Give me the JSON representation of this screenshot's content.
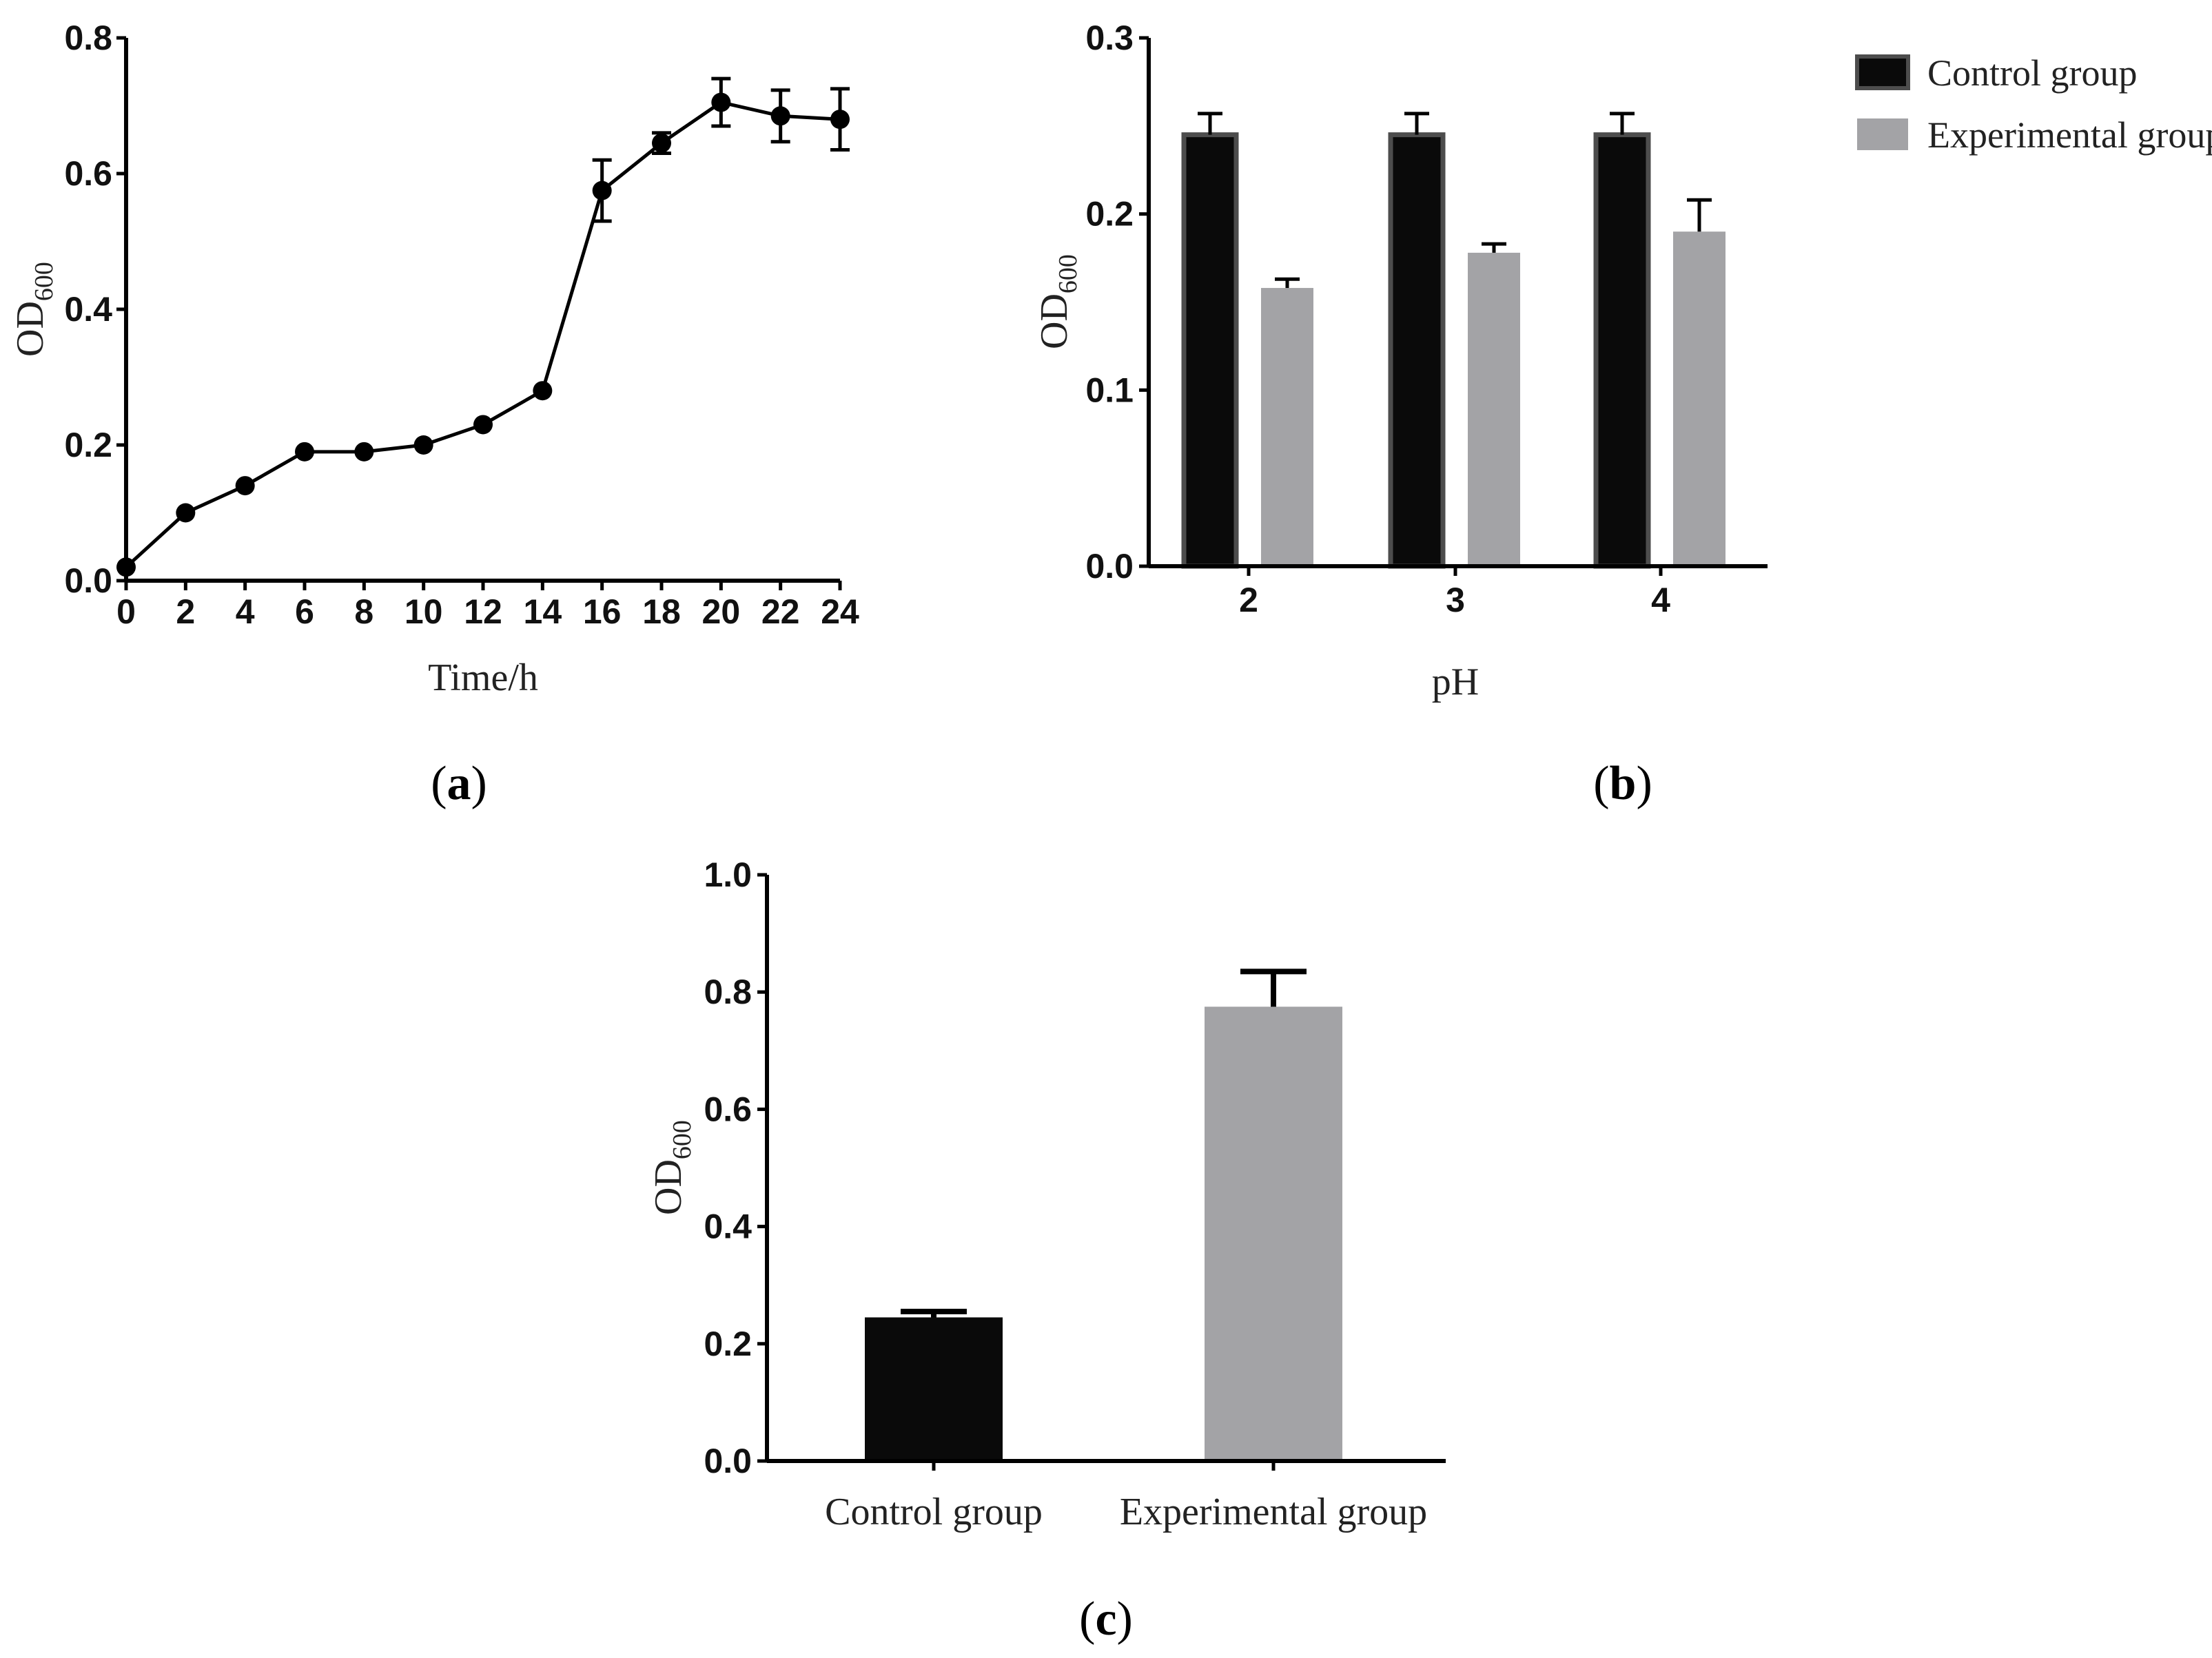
{
  "chart_data": [
    {
      "type": "line",
      "panel": "(a)",
      "caption": {
        "open": "(",
        "letter": "a",
        "close": ")"
      },
      "xlabel": "Time/h",
      "ylabel": {
        "main": "OD",
        "sub": "600"
      },
      "xlim": [
        0,
        24
      ],
      "ylim": [
        0,
        0.8
      ],
      "x_ticks": [
        "0",
        "2",
        "4",
        "6",
        "8",
        "10",
        "12",
        "14",
        "16",
        "18",
        "20",
        "22",
        "24"
      ],
      "y_ticks": [
        "0.0",
        "0.2",
        "0.4",
        "0.6",
        "0.8"
      ],
      "series": [
        {
          "name": "OD600",
          "x": [
            0,
            2,
            4,
            6,
            8,
            10,
            12,
            14,
            16,
            18,
            20,
            22,
            24
          ],
          "values": [
            0.02,
            0.1,
            0.14,
            0.19,
            0.19,
            0.2,
            0.23,
            0.28,
            0.575,
            0.645,
            0.705,
            0.685,
            0.68
          ],
          "errors": [
            0.005,
            0.005,
            0.005,
            0.005,
            0.005,
            0.005,
            0.005,
            0.005,
            0.045,
            0.015,
            0.035,
            0.038,
            0.045
          ]
        }
      ]
    },
    {
      "type": "bar",
      "panel": "(b)",
      "caption": {
        "open": "(",
        "letter": "b",
        "close": ")"
      },
      "xlabel": "pH",
      "ylabel": {
        "main": "OD",
        "sub": "600"
      },
      "ylim": [
        0,
        0.3
      ],
      "y_ticks": [
        "0.0",
        "0.1",
        "0.2",
        "0.3"
      ],
      "categories": [
        "2",
        "3",
        "4"
      ],
      "legend_position": "top-right",
      "series": [
        {
          "name": "Control group",
          "color": "#0a0a0a",
          "values": [
            0.245,
            0.245,
            0.245
          ],
          "errors": [
            0.012,
            0.012,
            0.012
          ]
        },
        {
          "name": "Experimental group",
          "color": "#a3a3a6",
          "values": [
            0.158,
            0.178,
            0.19
          ],
          "errors": [
            0.005,
            0.005,
            0.018
          ]
        }
      ]
    },
    {
      "type": "bar",
      "panel": "(c)",
      "caption": {
        "open": "(",
        "letter": "c",
        "close": ")"
      },
      "xlabel": "",
      "ylabel": {
        "main": "OD",
        "sub": "600"
      },
      "ylim": [
        0,
        1.0
      ],
      "y_ticks": [
        "0.0",
        "0.2",
        "0.4",
        "0.6",
        "0.8",
        "1.0"
      ],
      "categories": [
        "Control group",
        "Experimental group"
      ],
      "colors": [
        "#0a0a0a",
        "#a3a3a6"
      ],
      "values": [
        0.245,
        0.775
      ],
      "errors": [
        0.01,
        0.06
      ]
    }
  ]
}
